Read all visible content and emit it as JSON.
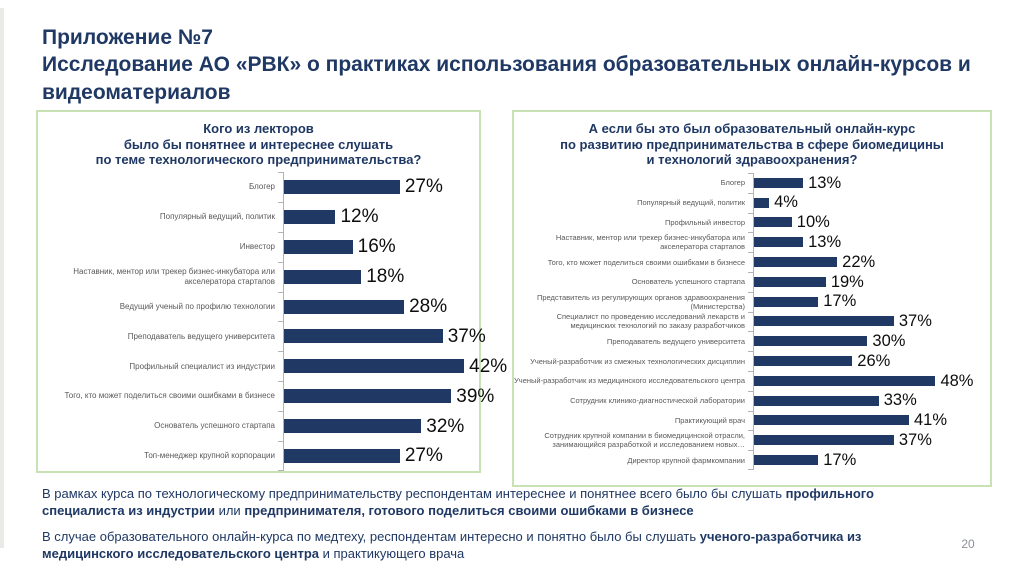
{
  "slide": {
    "title_line1": "Приложение №7",
    "title_line2": "Исследование АО «РВК» о практиках использования образовательных онлайн-курсов и видеоматериалов",
    "page_number": "20"
  },
  "colors": {
    "bar": "#1f3864",
    "title_blue": "#1f3864",
    "panel_border": "#c9e2b5",
    "category_label": "#595959",
    "axis": "#b3b3b3"
  },
  "footer": {
    "paragraph1": [
      {
        "t": "В рамках курса по технологическому предпринимательству респондентам интереснее и понятнее всего было бы слушать ",
        "b": false
      },
      {
        "t": "профильного специалиста из индустрии",
        "b": true
      },
      {
        "t": " или ",
        "b": false
      },
      {
        "t": "предпринимателя, готового поделиться своими ошибками в бизнесе",
        "b": true
      }
    ],
    "paragraph2": [
      {
        "t": "В случае образовательного онлайн-курса по медтеху, респондентам интересно и понятно было бы слушать ",
        "b": false
      },
      {
        "t": "ученого-разработчика из медицинского исследовательского центра",
        "b": true
      },
      {
        "t": " и практикующего врача",
        "b": false
      }
    ]
  },
  "chart_data": [
    {
      "type": "bar",
      "orientation": "horizontal",
      "title": "Кого из лекторов было бы понятнее и интереснее слушать по теме технологического предпринимательства?",
      "title_display": "Кого из лекторов\nбыло бы понятнее и интереснее слушать\nпо теме технологического предпринимательства?",
      "unit": "%",
      "xlim": [
        0,
        50
      ],
      "grid": false,
      "bar_color": "#1f3864",
      "categories": [
        "Блогер",
        "Популярный ведущий, политик",
        "Инвестор",
        "Наставник, ментор или трекер бизнес-инкубатора или акселератора стартапов",
        "Ведущий ученый по профилю технологии",
        "Преподаватель ведущего университета",
        "Профильный специалист из индустрии",
        "Того, кто может поделиться своими ошибками в бизнесе",
        "Основатель успешного стартапа",
        "Топ-менеджер крупной корпорации"
      ],
      "values": [
        27,
        12,
        16,
        18,
        28,
        37,
        42,
        39,
        32,
        27
      ]
    },
    {
      "type": "bar",
      "orientation": "horizontal",
      "title": "А если бы это был образовательный онлайн-курс по развитию предпринимательства в сфере биомедицины и технологий здравоохранения?",
      "title_display": "А если бы это был образовательный онлайн-курс\nпо развитию предпринимательства в сфере биомедицины\nи технологий здравоохранения?",
      "unit": "%",
      "xlim": [
        0,
        55
      ],
      "grid": false,
      "bar_color": "#1f3864",
      "categories": [
        "Блогер",
        "Популярный ведущий, политик",
        "Профильный инвестор",
        "Наставник, ментор или трекер бизнес-инкубатора или акселератора стартапов",
        "Того, кто может поделиться своими ошибками в бизнесе",
        "Основатель успешного стартапа",
        "Представитель из регулирующих органов здравоохранения (Министерства)",
        "Специалист по проведению исследований лекарств и медицинских технологий по заказу разработчиков",
        "Преподаватель ведущего университета",
        "Ученый-разработчик из смежных технологических дисциплин",
        "Ученый-разработчик из медицинского исследовательского центра",
        "Сотрудник клинико-диагностической лаборатории",
        "Практикующий врач",
        "Сотрудник крупной компании в биомедицинской отрасли, занимающийся разработкой и исследованием новых…",
        "Директор крупной фармкомпании"
      ],
      "values": [
        13,
        4,
        10,
        13,
        22,
        19,
        17,
        37,
        30,
        26,
        48,
        33,
        41,
        37,
        17
      ]
    }
  ]
}
